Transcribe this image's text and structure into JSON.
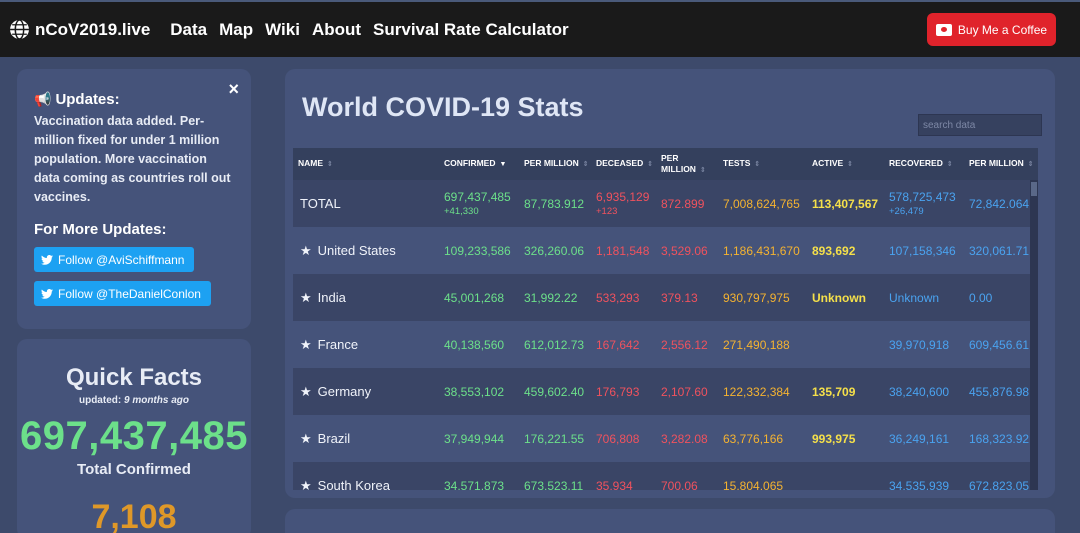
{
  "navbar": {
    "brand": "nCoV2019.live",
    "links": [
      "Data",
      "Map",
      "Wiki",
      "About",
      "Survival Rate Calculator"
    ],
    "coffee_label": "Buy Me a Coffee"
  },
  "updates": {
    "title": "Updates:",
    "close": "×",
    "body": "Vaccination data added. Per-million fixed for under 1 million population. More vaccination data coming as countries roll out vaccines.",
    "more_title": "For More Updates:",
    "follow1": "Follow @AviSchiffmann",
    "follow2": "Follow @TheDanielConlon"
  },
  "facts": {
    "title": "Quick Facts",
    "updated_prefix": "updated:",
    "updated_value": "9 months ago",
    "total_confirmed": "697,437,485",
    "total_label": "Total Confirmed",
    "next_value": "7,108"
  },
  "main": {
    "title": "World COVID-19 Stats",
    "search_placeholder": "search data",
    "headers": [
      "NAME",
      "CONFIRMED",
      "PER MILLION",
      "DECEASED",
      "PER MILLION",
      "TESTS",
      "ACTIVE",
      "RECOVERED",
      "PER MILLION"
    ],
    "rows": [
      {
        "name": "TOTAL",
        "star": "",
        "confirmed": "697,437,485",
        "confirmed_new": "+41,330",
        "conf_pm": "87,783.912",
        "deceased": "6,935,129",
        "deceased_new": "+123",
        "dec_pm": "872.899",
        "tests": "7,008,624,765",
        "active": "113,407,567",
        "recovered": "578,725,473",
        "recovered_new": "+26,479",
        "rec_pm": "72,842.064"
      },
      {
        "name": "United States",
        "star": "★",
        "confirmed": "109,233,586",
        "confirmed_new": "",
        "conf_pm": "326,260.06",
        "deceased": "1,181,548",
        "deceased_new": "",
        "dec_pm": "3,529.06",
        "tests": "1,186,431,670",
        "active": "893,692",
        "recovered": "107,158,346",
        "recovered_new": "",
        "rec_pm": "320,061.71"
      },
      {
        "name": "India",
        "star": "★",
        "confirmed": "45,001,268",
        "confirmed_new": "",
        "conf_pm": "31,992.22",
        "deceased": "533,293",
        "deceased_new": "",
        "dec_pm": "379.13",
        "tests": "930,797,975",
        "active": "Unknown",
        "recovered": "Unknown",
        "recovered_new": "",
        "rec_pm": "0.00"
      },
      {
        "name": "France",
        "star": "★",
        "confirmed": "40,138,560",
        "confirmed_new": "",
        "conf_pm": "612,012.73",
        "deceased": "167,642",
        "deceased_new": "",
        "dec_pm": "2,556.12",
        "tests": "271,490,188",
        "active": "",
        "recovered": "39,970,918",
        "recovered_new": "",
        "rec_pm": "609,456.61"
      },
      {
        "name": "Germany",
        "star": "★",
        "confirmed": "38,553,102",
        "confirmed_new": "",
        "conf_pm": "459,602.40",
        "deceased": "176,793",
        "deceased_new": "",
        "dec_pm": "2,107.60",
        "tests": "122,332,384",
        "active": "135,709",
        "recovered": "38,240,600",
        "recovered_new": "",
        "rec_pm": "455,876.98"
      },
      {
        "name": "Brazil",
        "star": "★",
        "confirmed": "37,949,944",
        "confirmed_new": "",
        "conf_pm": "176,221.55",
        "deceased": "706,808",
        "deceased_new": "",
        "dec_pm": "3,282.08",
        "tests": "63,776,166",
        "active": "993,975",
        "recovered": "36,249,161",
        "recovered_new": "",
        "rec_pm": "168,323.92"
      },
      {
        "name": "South Korea",
        "star": "★",
        "confirmed": "34,571,873",
        "confirmed_new": "",
        "conf_pm": "673,523.11",
        "deceased": "35,934",
        "deceased_new": "",
        "dec_pm": "700.06",
        "tests": "15,804,065",
        "active": "",
        "recovered": "34,535,939",
        "recovered_new": "",
        "rec_pm": "672,823.05"
      }
    ]
  },
  "colors": {
    "background": "#3d4a6b",
    "card": "#45537a",
    "green": "#6ce08a",
    "red": "#f0525e",
    "orange": "#f5b330",
    "yellow": "#f5e04a",
    "blue": "#4aa3f0",
    "coffee": "#e0232b",
    "twitter": "#1da1f2"
  }
}
